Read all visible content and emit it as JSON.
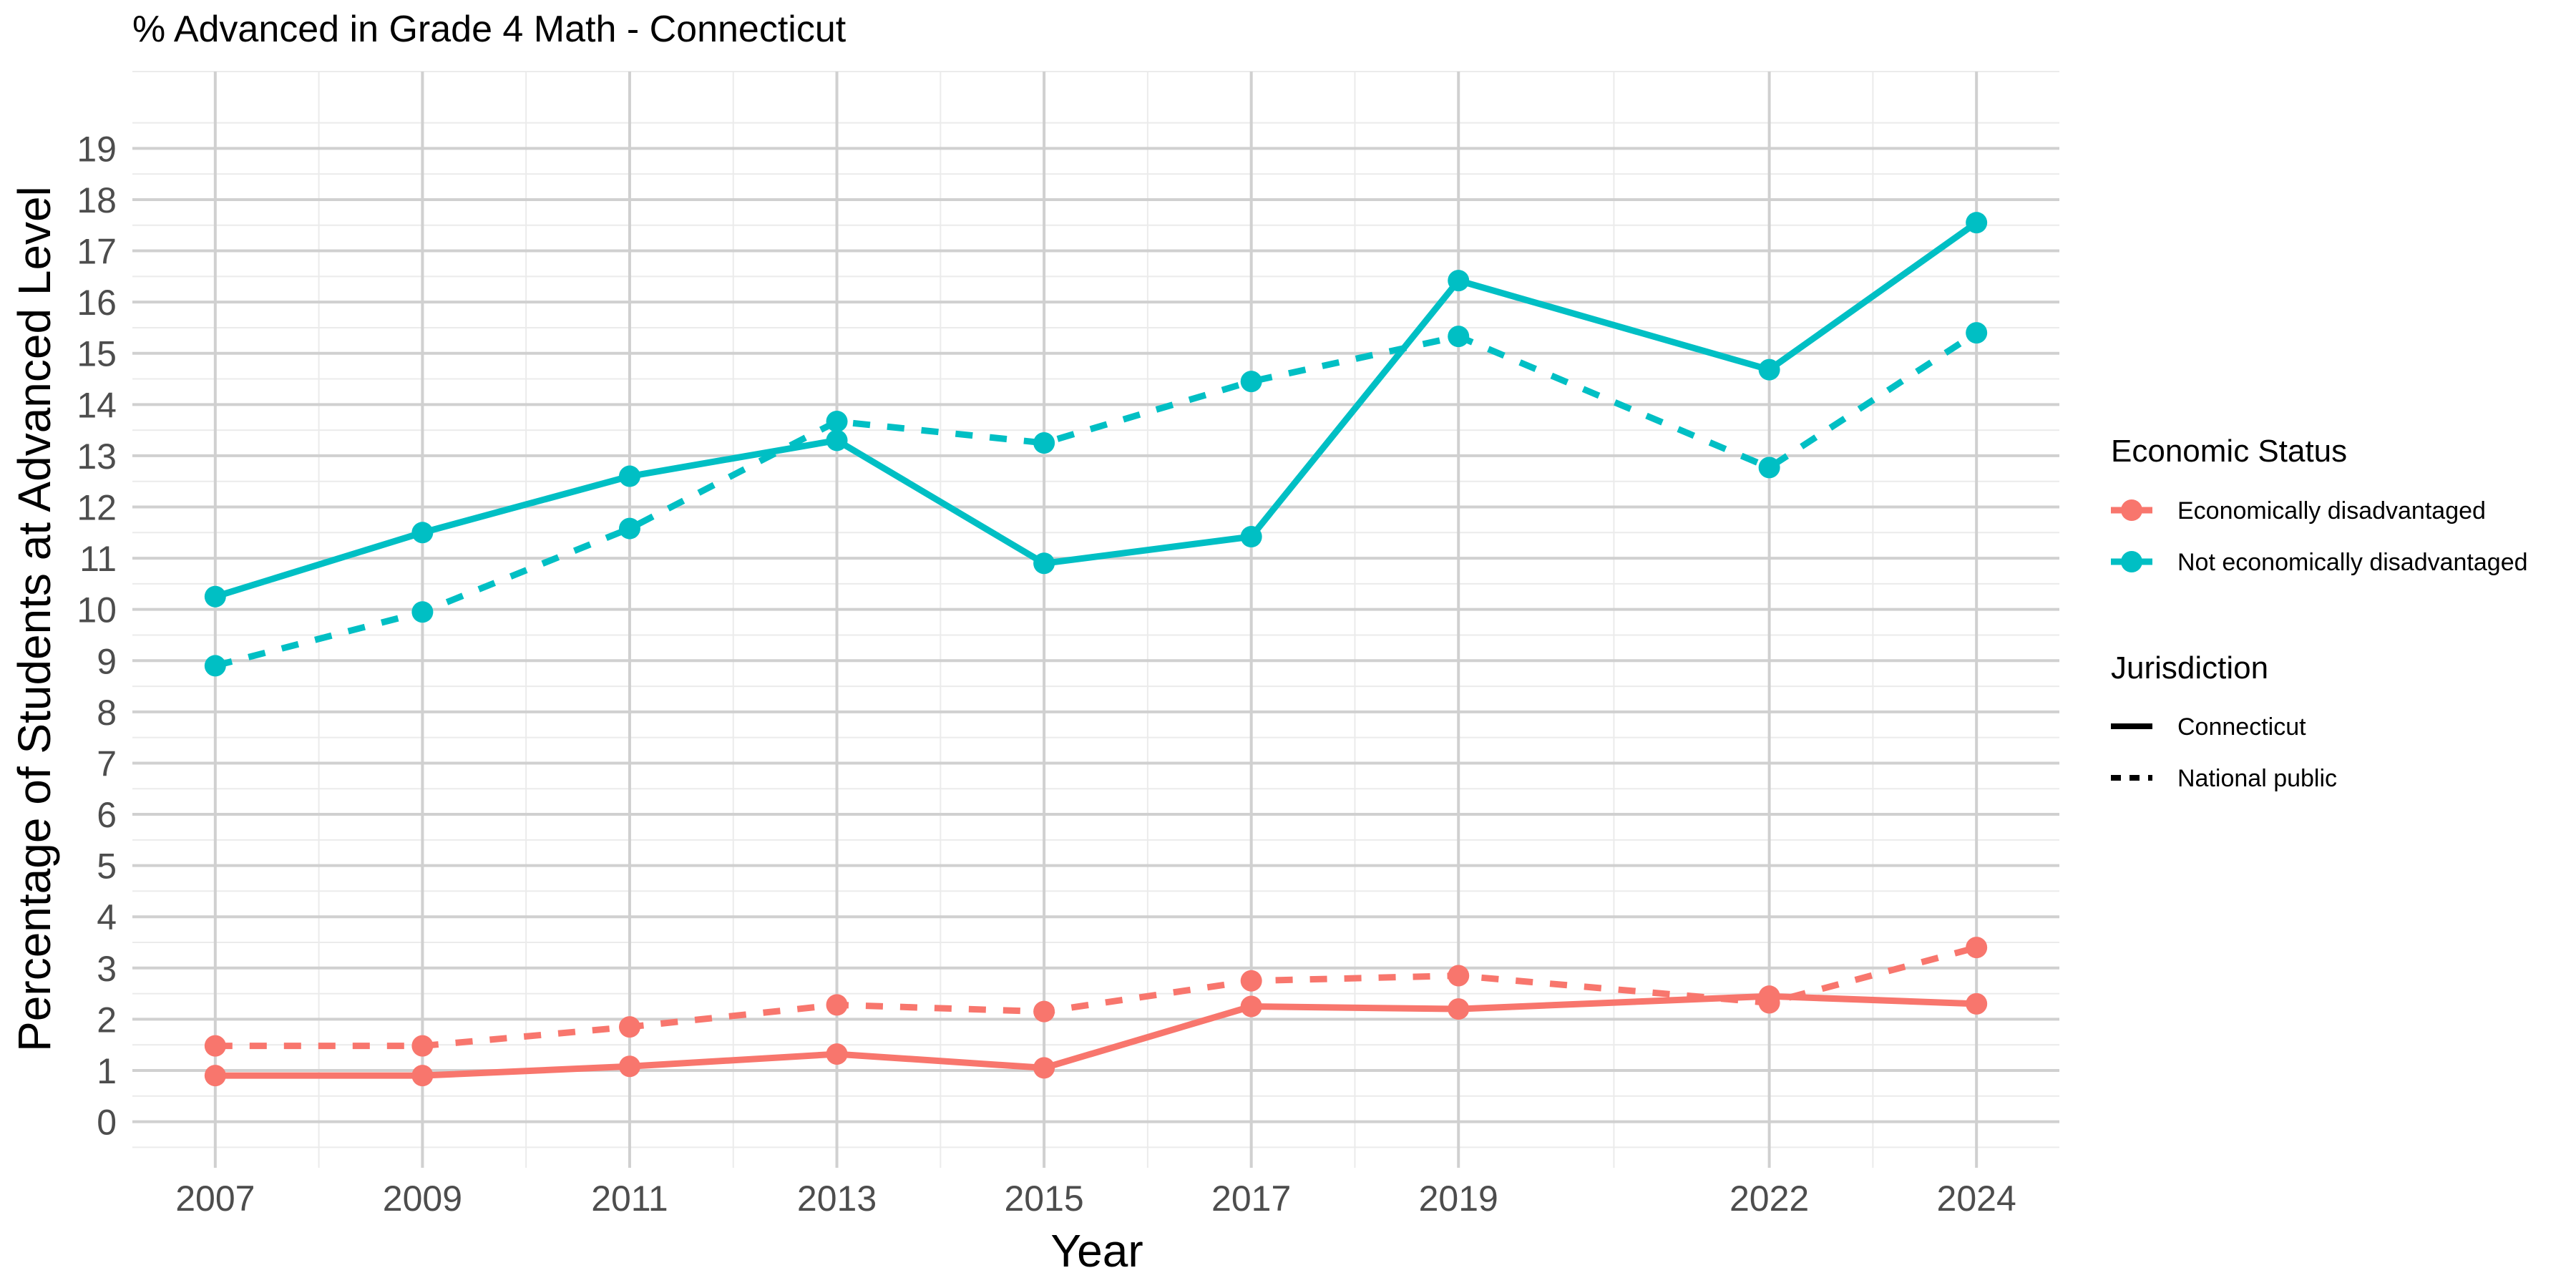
{
  "chart_data": {
    "type": "line",
    "title": "% Advanced in Grade 4 Math - Connecticut",
    "xlabel": "Year",
    "ylabel": "Percentage of Students at Advanced Level",
    "x": [
      2007,
      2009,
      2011,
      2013,
      2015,
      2017,
      2019,
      2022,
      2024
    ],
    "x_tick_labels": [
      "2007",
      "2009",
      "2011",
      "2013",
      "2015",
      "2017",
      "2019",
      "2022",
      "2024"
    ],
    "y_tick_labels": [
      "0",
      "1",
      "2",
      "3",
      "4",
      "5",
      "6",
      "7",
      "8",
      "9",
      "10",
      "11",
      "12",
      "13",
      "14",
      "15",
      "16",
      "17",
      "18",
      "19"
    ],
    "ylim": [
      -0.9,
      20.5
    ],
    "xlim": [
      2006.2,
      2024.8
    ],
    "grid": true,
    "legend_position": "right",
    "legends": [
      {
        "title": "Economic Status",
        "entries": [
          {
            "label": "Economically disadvantaged",
            "color": "#F8766D"
          },
          {
            "label": "Not economically disadvantaged",
            "color": "#00BFC4"
          }
        ]
      },
      {
        "title": "Jurisdiction",
        "entries": [
          {
            "label": "Connecticut",
            "linetype": "solid"
          },
          {
            "label": "National public",
            "linetype": "dashed"
          }
        ]
      }
    ],
    "series": [
      {
        "status": "Economically disadvantaged",
        "jurisdiction": "Connecticut",
        "color": "#F8766D",
        "linetype": "solid",
        "values": [
          0.9,
          0.9,
          1.08,
          1.32,
          1.05,
          2.25,
          2.2,
          2.45,
          2.3
        ]
      },
      {
        "status": "Economically disadvantaged",
        "jurisdiction": "National public",
        "color": "#F8766D",
        "linetype": "dashed",
        "values": [
          1.48,
          1.48,
          1.85,
          2.28,
          2.15,
          2.75,
          2.85,
          2.32,
          3.4
        ]
      },
      {
        "status": "Not economically disadvantaged",
        "jurisdiction": "Connecticut",
        "color": "#00BFC4",
        "linetype": "solid",
        "values": [
          10.25,
          11.5,
          12.6,
          13.3,
          10.9,
          11.42,
          16.42,
          14.68,
          17.55
        ]
      },
      {
        "status": "Not economically disadvantaged",
        "jurisdiction": "National public",
        "color": "#00BFC4",
        "linetype": "dashed",
        "values": [
          8.9,
          9.95,
          11.58,
          13.67,
          13.25,
          14.45,
          15.33,
          12.77,
          15.4
        ]
      }
    ]
  }
}
